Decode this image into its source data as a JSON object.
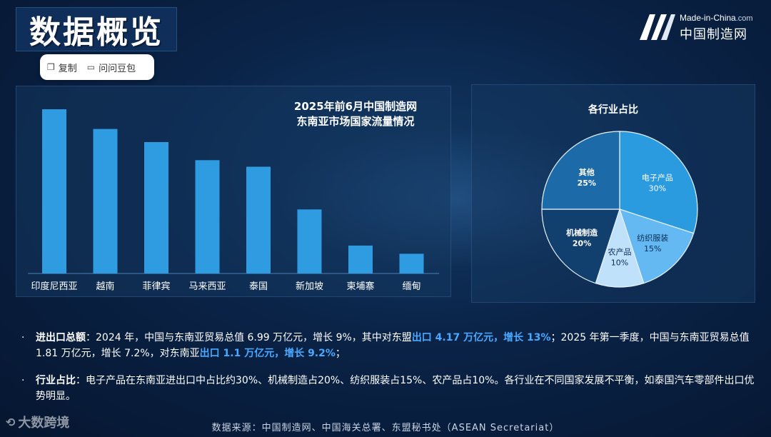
{
  "page": {
    "title": "数据概览"
  },
  "toolbar": {
    "copy_label": "复制",
    "ask_label": "问问豆包"
  },
  "logo": {
    "en": "Made-in-China",
    "en_suffix": ".com",
    "cn": "中国制造网"
  },
  "chart_data": [
    {
      "type": "bar",
      "title_line1": "2025年前6月中国制造网",
      "title_line2": "东南亚市场国家流量情况",
      "categories": [
        "印度尼西亚",
        "越南",
        "菲律宾",
        "马来西亚",
        "泰国",
        "新加坡",
        "柬埔寨",
        "缅甸"
      ],
      "values": [
        100,
        88,
        80,
        69,
        65,
        39,
        17,
        12
      ],
      "ylim": [
        0,
        100
      ],
      "xlabel": "",
      "ylabel": "",
      "color": "#2f9be0"
    },
    {
      "type": "pie",
      "title": "各行业占比",
      "slices": [
        {
          "name": "电子产品",
          "value": 30,
          "pct": "30%",
          "color": "#2b9be0"
        },
        {
          "name": "纺织服装",
          "value": 15,
          "pct": "15%",
          "color": "#65b9f3"
        },
        {
          "name": "农产品",
          "value": 10,
          "pct": "10%",
          "color": "#bfe2fa"
        },
        {
          "name": "机械制造",
          "value": 20,
          "pct": "20%",
          "color": "#12406e"
        },
        {
          "name": "其他",
          "value": 25,
          "pct": "25%",
          "color": "#1d6aa8"
        }
      ]
    }
  ],
  "bullets": [
    {
      "label": "进出口总额",
      "colon": "：",
      "t1": "2024 年，中国与东南亚贸易总值 6.99 万亿元，增长 9%，其中对东盟",
      "h1": "出口 4.17 万亿元，增长 13%",
      "t2": "；2025 年第一季度，中国与东南亚贸易总值 1.81 万亿元，增长 7.2%，对东南亚",
      "h2": "出口 1.1 万亿元，增长 9.2%",
      "t3": "；"
    },
    {
      "label": "行业占比",
      "colon": "：",
      "t1": "电子产品在东南亚进出口中占比约30%、机械制造占20%、纺织服装占15%、农产品占10%。各行业在不同国家发展不平衡，如泰国汽车零部件出口优势明显。"
    }
  ],
  "source": "数据来源：中国制造网、中国海关总署、东盟秘书处（ASEAN Secretariat）",
  "watermark": "大数跨境",
  "colors": {
    "accent": "#4aa8ff",
    "bar": "#2f9be0",
    "background": "#0a2347"
  }
}
